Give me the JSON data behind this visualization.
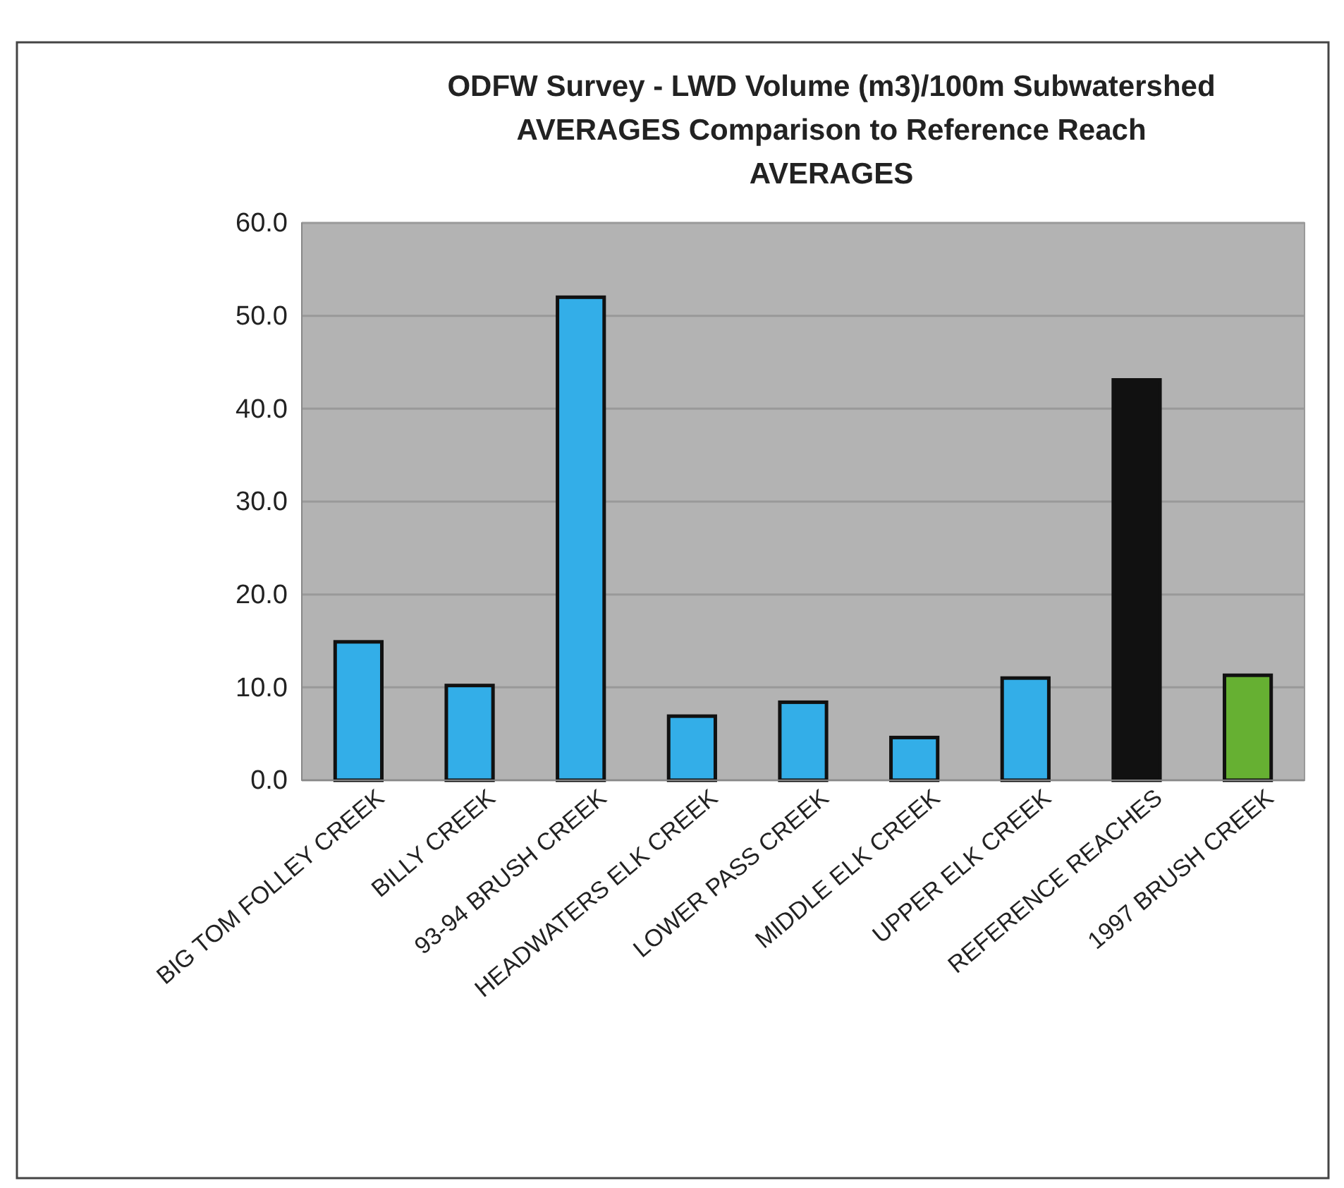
{
  "chart_data": {
    "type": "bar",
    "title": "ODFW Survey - LWD Volume (m3)/100m Subwatershed AVERAGES Comparison to Reference Reach AVERAGES",
    "categories": [
      "BIG TOM FOLLEY CREEK",
      "BILLY CREEK",
      "93-94 BRUSH CREEK",
      "HEADWATERS ELK CREEK",
      "LOWER PASS CREEK",
      "MIDDLE ELK CREEK",
      "UPPER ELK CREEK",
      "REFERENCE REACHES",
      "1997 BRUSH CREEK"
    ],
    "values": [
      14.9,
      10.2,
      52.0,
      6.9,
      8.4,
      4.6,
      11.0,
      43.1,
      11.3
    ],
    "colors": [
      "#33aee8",
      "#33aee8",
      "#33aee8",
      "#33aee8",
      "#33aee8",
      "#33aee8",
      "#33aee8",
      "#111111",
      "#66b032"
    ],
    "ylim": [
      0,
      60
    ],
    "yticks": [
      {
        "value": 0,
        "label": "0.0"
      },
      {
        "value": 10,
        "label": "10.0"
      },
      {
        "value": 20,
        "label": "20.0"
      },
      {
        "value": 30,
        "label": "30.0"
      },
      {
        "value": 40,
        "label": "40.0"
      },
      {
        "value": 50,
        "label": "50.0"
      },
      {
        "value": 60,
        "label": "60.0"
      }
    ],
    "grid": "y"
  }
}
